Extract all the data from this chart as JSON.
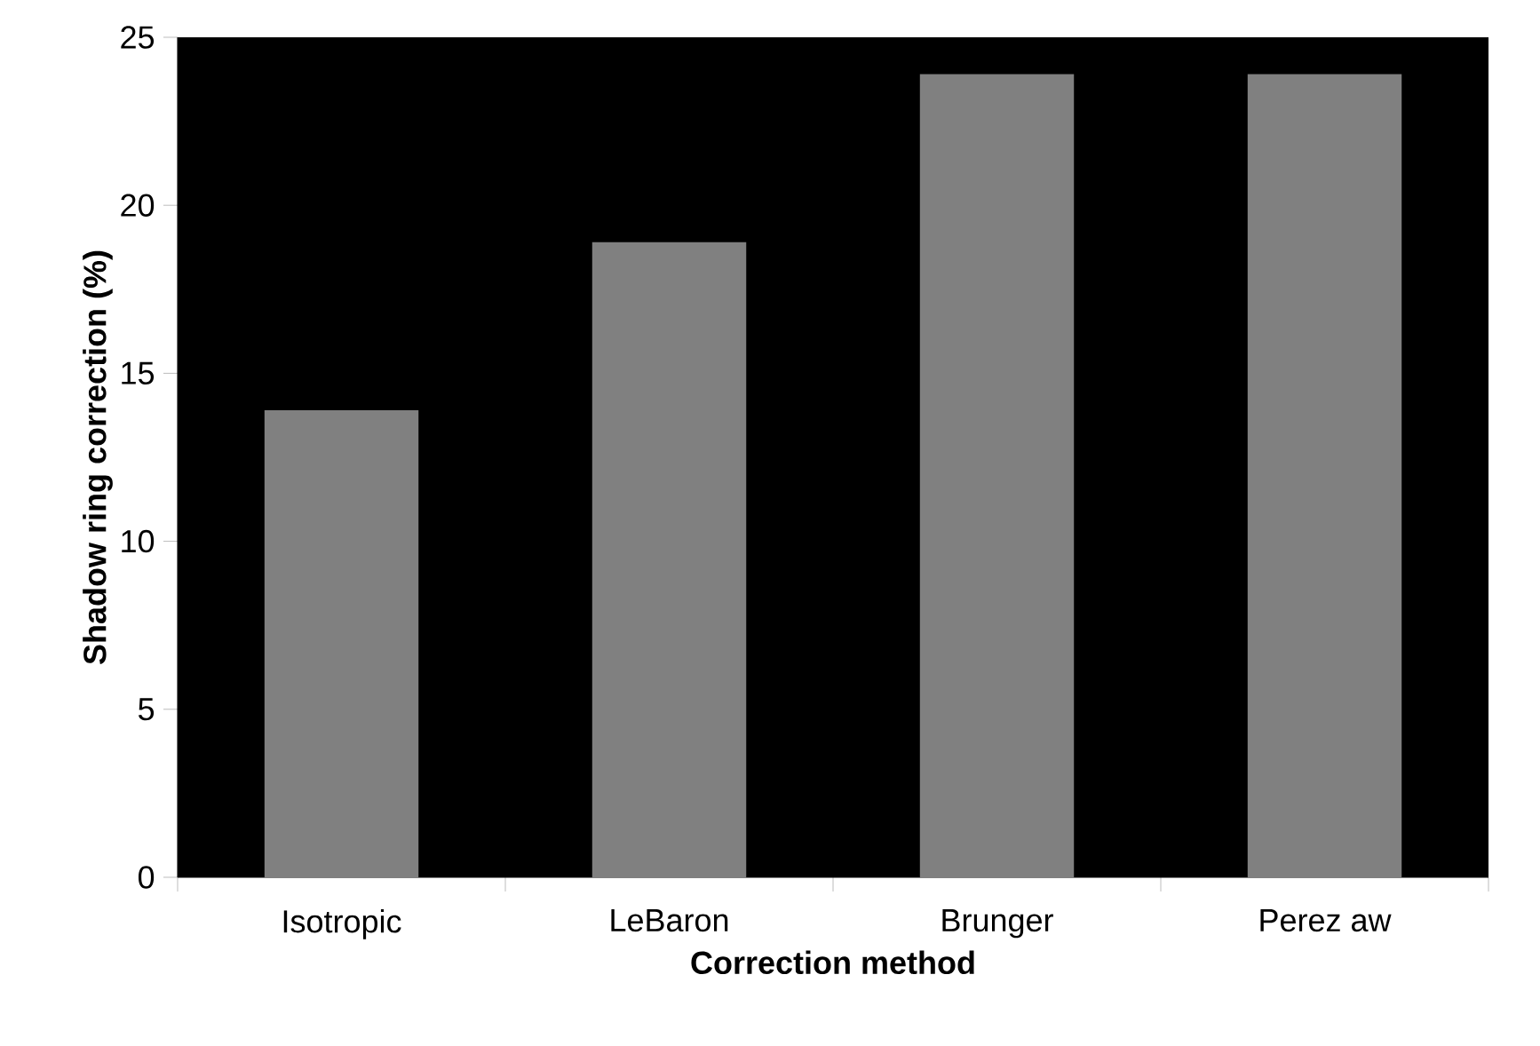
{
  "chart_data": {
    "type": "bar",
    "xlabel": "Correction method",
    "ylabel": "Shadow ring correction (%)",
    "categories": [
      "Isotropic",
      "LeBaron",
      "Brunger",
      "Perez aw"
    ],
    "values": [
      13.9,
      18.9,
      23.9,
      23.9
    ],
    "color": "#808080",
    "ylim": [
      0,
      25
    ],
    "yticks": [
      0,
      5,
      10,
      15,
      20,
      25
    ],
    "grid": false
  }
}
